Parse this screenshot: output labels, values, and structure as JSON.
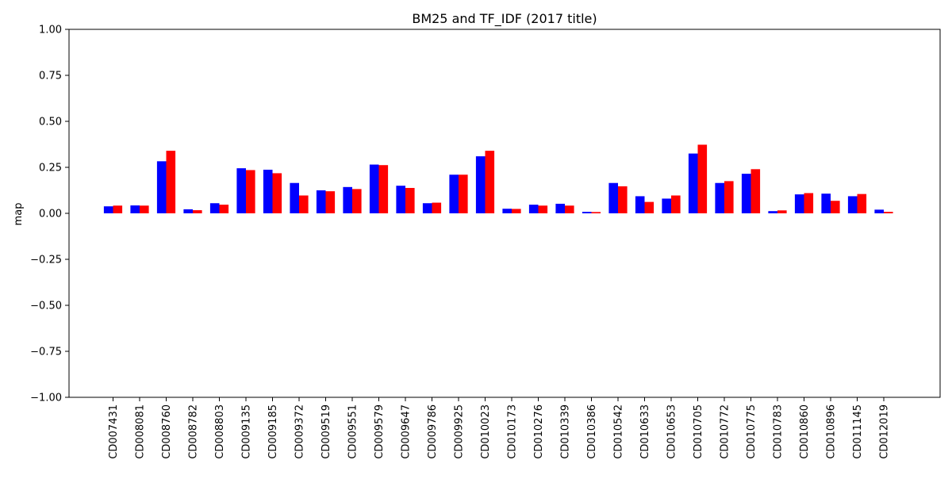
{
  "chart_data": {
    "type": "bar",
    "title": "BM25 and TF_IDF (2017 title)",
    "xlabel": "",
    "ylabel": "map",
    "ylim": [
      -1.0,
      1.0
    ],
    "yticks": [
      "1.00",
      "0.75",
      "0.50",
      "0.25",
      "0.00",
      "−0.25",
      "−0.50",
      "−0.75",
      "−1.00"
    ],
    "ytick_values": [
      1.0,
      0.75,
      0.5,
      0.25,
      0.0,
      -0.25,
      -0.5,
      -0.75,
      -1.0
    ],
    "grid": false,
    "legend": "none",
    "categories": [
      "CD007431",
      "CD008081",
      "CD008760",
      "CD008782",
      "CD008803",
      "CD009135",
      "CD009185",
      "CD009372",
      "CD009519",
      "CD009551",
      "CD009579",
      "CD009647",
      "CD009786",
      "CD009925",
      "CD010023",
      "CD010173",
      "CD010276",
      "CD010339",
      "CD010386",
      "CD010542",
      "CD010633",
      "CD010653",
      "CD010705",
      "CD010772",
      "CD010775",
      "CD010783",
      "CD010860",
      "CD010896",
      "CD011145",
      "CD012019"
    ],
    "series": [
      {
        "color": "#0000ff",
        "values": [
          0.038,
          0.043,
          0.283,
          0.022,
          0.055,
          0.245,
          0.237,
          0.165,
          0.125,
          0.143,
          0.265,
          0.15,
          0.055,
          0.21,
          0.31,
          0.025,
          0.047,
          0.052,
          0.008,
          0.165,
          0.093,
          0.08,
          0.325,
          0.165,
          0.215,
          0.012,
          0.103,
          0.107,
          0.093,
          0.02
        ]
      },
      {
        "color": "#ff0000",
        "values": [
          0.042,
          0.042,
          0.34,
          0.017,
          0.047,
          0.235,
          0.218,
          0.097,
          0.12,
          0.132,
          0.262,
          0.138,
          0.058,
          0.21,
          0.34,
          0.024,
          0.042,
          0.042,
          0.007,
          0.147,
          0.062,
          0.097,
          0.373,
          0.175,
          0.24,
          0.016,
          0.11,
          0.068,
          0.105,
          0.008
        ]
      }
    ]
  }
}
